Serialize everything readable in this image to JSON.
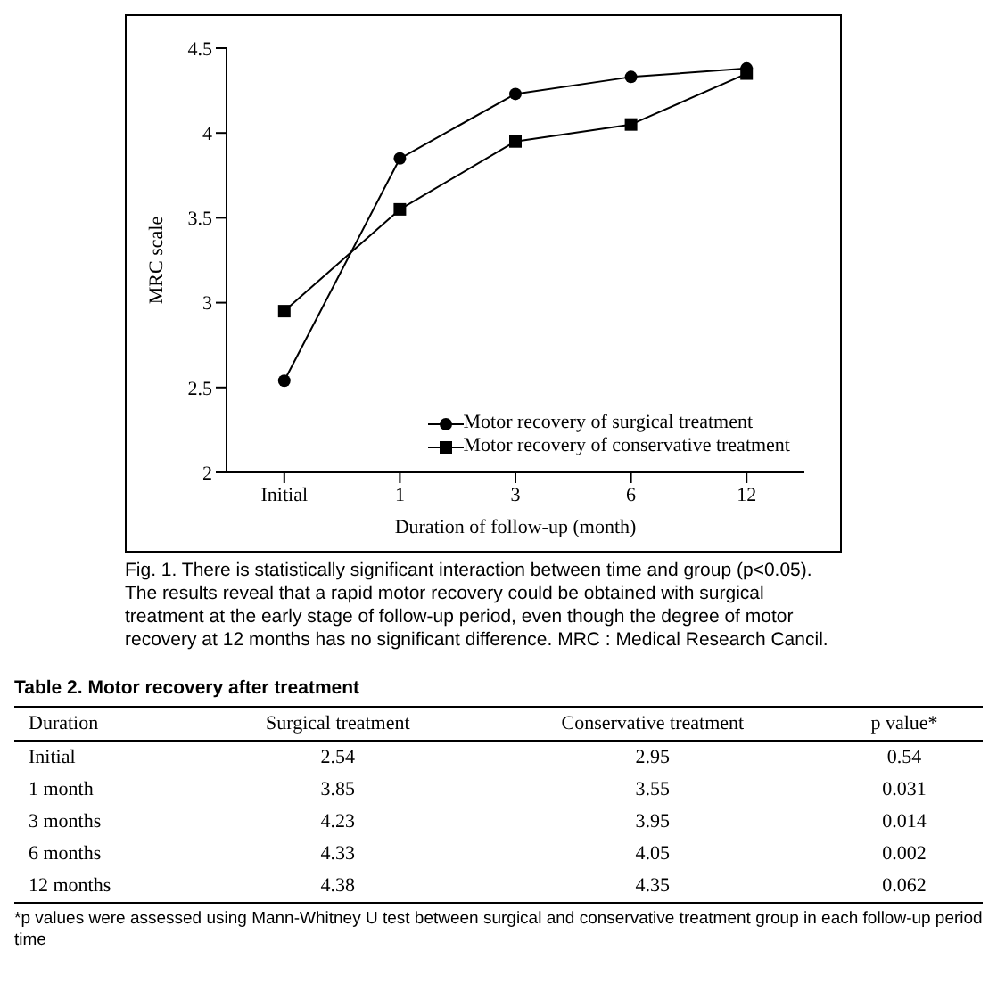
{
  "chart_data": {
    "type": "line",
    "xlabel": "Duration of follow-up (month)",
    "ylabel": "MRC scale",
    "categories": [
      "Initial",
      "1",
      "3",
      "6",
      "12"
    ],
    "series": [
      {
        "name": "Motor recovery of surgical treatment",
        "color": "#000000",
        "marker": "circle",
        "values": [
          2.54,
          3.85,
          4.23,
          4.33,
          4.38
        ]
      },
      {
        "name": "Motor recovery of conservative treatment",
        "color": "#000000",
        "marker": "square",
        "values": [
          2.95,
          3.55,
          3.95,
          4.05,
          4.35
        ]
      }
    ],
    "ylim": [
      2,
      4.5
    ],
    "yticks": [
      2,
      2.5,
      3,
      3.5,
      4,
      4.5
    ],
    "legend": "bottom right",
    "line_style": "solid",
    "annotations": [
      "Fig. 1. There is statistically significant interaction between time and group (p<0.05). The results reveal that a rapid motor recovery could be obtained with surgical treatment at the early stage of follow-up period, even though the degree of motor recovery at 12 months has no significant difference. MRC : Medical Research Cancil.",
      "Table 2. Motor recovery after treatment",
      "Duration",
      "Surgical treatment",
      "Conservative treatment",
      "p value*",
      "Initial",
      "2.54",
      "2.95",
      "0.54",
      "1 month",
      "3.85",
      "3.55",
      "0.031",
      "3 months",
      "4.23",
      "3.95",
      "0.014",
      "6 months",
      "4.33",
      "4.05",
      "0.002",
      "12 months",
      "4.38",
      "4.35",
      "0.062",
      "*p values were assessed using Mann-Whitney U test between surgical and conservative treatment group in each follow-up period time"
    ]
  }
}
